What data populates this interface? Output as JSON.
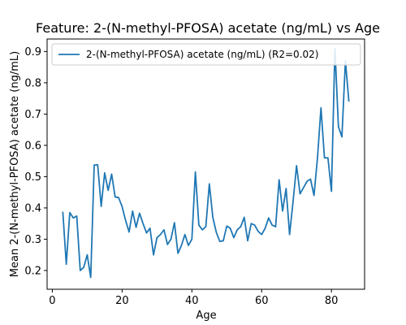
{
  "chart_data": {
    "type": "line",
    "title": "Feature: 2-(N-methyl-PFOSA) acetate (ng/mL) vs Age",
    "xlabel": "Age",
    "ylabel": "Mean 2-(N-methyl-PFOSA) acetate (ng/mL)",
    "xlim": [
      -1.5,
      89.5
    ],
    "ylim": [
      0.14,
      0.94
    ],
    "xticks": [
      0,
      20,
      40,
      60,
      80
    ],
    "yticks": [
      0.2,
      0.3,
      0.4,
      0.5,
      0.6,
      0.7,
      0.8,
      0.9
    ],
    "legend_position": "top",
    "grid": false,
    "series": [
      {
        "name": "2-(N-methyl-PFOSA) acetate (ng/mL) (R2=0.02)",
        "color": "#1f77b4",
        "x": [
          3,
          4,
          5,
          6,
          7,
          8,
          9,
          10,
          11,
          12,
          13,
          14,
          15,
          16,
          17,
          18,
          19,
          20,
          21,
          22,
          23,
          24,
          25,
          26,
          27,
          28,
          29,
          30,
          31,
          32,
          33,
          34,
          35,
          36,
          37,
          38,
          39,
          40,
          41,
          42,
          43,
          44,
          45,
          46,
          47,
          48,
          49,
          50,
          51,
          52,
          53,
          54,
          55,
          56,
          57,
          58,
          59,
          60,
          61,
          62,
          63,
          64,
          65,
          66,
          67,
          68,
          69,
          70,
          71,
          72,
          73,
          74,
          75,
          76,
          77,
          78,
          79,
          80,
          81,
          82,
          83,
          84,
          85
        ],
        "y": [
          0.388,
          0.22,
          0.385,
          0.368,
          0.374,
          0.2,
          0.21,
          0.25,
          0.178,
          0.537,
          0.538,
          0.405,
          0.512,
          0.456,
          0.508,
          0.435,
          0.433,
          0.404,
          0.36,
          0.323,
          0.39,
          0.338,
          0.383,
          0.35,
          0.32,
          0.335,
          0.25,
          0.305,
          0.315,
          0.33,
          0.283,
          0.3,
          0.353,
          0.255,
          0.28,
          0.315,
          0.28,
          0.3,
          0.515,
          0.345,
          0.33,
          0.34,
          0.477,
          0.37,
          0.322,
          0.293,
          0.295,
          0.342,
          0.335,
          0.305,
          0.33,
          0.34,
          0.37,
          0.295,
          0.35,
          0.345,
          0.325,
          0.315,
          0.335,
          0.368,
          0.345,
          0.34,
          0.49,
          0.39,
          0.462,
          0.315,
          0.42,
          0.535,
          0.445,
          0.465,
          0.485,
          0.492,
          0.44,
          0.56,
          0.72,
          0.56,
          0.56,
          0.453,
          0.91,
          0.66,
          0.627,
          0.87,
          0.74
        ]
      }
    ]
  }
}
